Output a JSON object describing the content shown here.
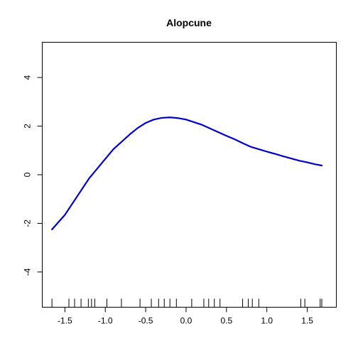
{
  "chart_data": {
    "type": "line",
    "title": "Alopcune",
    "xlabel": "",
    "ylabel": "",
    "xlim": [
      -1.78,
      1.86
    ],
    "ylim": [
      -5.45,
      5.45
    ],
    "grid": false,
    "x_ticks": [
      -1.5,
      -1.0,
      -0.5,
      0.0,
      0.5,
      1.0,
      1.5
    ],
    "x_tick_labels": [
      "-1.5",
      "-1.0",
      "-0.5",
      "0.0",
      "0.5",
      "1.0",
      "1.5"
    ],
    "y_ticks": [
      -4,
      -2,
      0,
      2,
      4
    ],
    "y_tick_labels": [
      "-4",
      "-2",
      "0",
      "2",
      "4"
    ],
    "series": [
      {
        "color": "#0000cd",
        "x": [
          -1.66,
          -1.5,
          -1.35,
          -1.2,
          -1.05,
          -0.9,
          -0.8,
          -0.7,
          -0.6,
          -0.5,
          -0.4,
          -0.3,
          -0.2,
          -0.1,
          0.0,
          0.1,
          0.2,
          0.3,
          0.4,
          0.5,
          0.6,
          0.7,
          0.8,
          0.9,
          1.0,
          1.1,
          1.2,
          1.3,
          1.4,
          1.5,
          1.6,
          1.68
        ],
        "y": [
          -2.25,
          -1.65,
          -0.9,
          -0.15,
          0.45,
          1.05,
          1.35,
          1.65,
          1.92,
          2.13,
          2.27,
          2.34,
          2.36,
          2.33,
          2.27,
          2.16,
          2.05,
          1.9,
          1.75,
          1.6,
          1.46,
          1.3,
          1.15,
          1.05,
          0.95,
          0.86,
          0.76,
          0.67,
          0.58,
          0.51,
          0.43,
          0.38
        ]
      }
    ],
    "rug": [
      -1.66,
      -1.45,
      -1.38,
      -1.3,
      -1.21,
      -1.17,
      -1.13,
      -0.98,
      -0.8,
      -0.57,
      -0.43,
      -0.34,
      -0.27,
      -0.2,
      -0.12,
      0.07,
      0.22,
      0.28,
      0.35,
      0.42,
      0.7,
      0.77,
      0.82,
      0.9,
      1.42,
      1.47,
      1.66,
      1.68
    ]
  }
}
